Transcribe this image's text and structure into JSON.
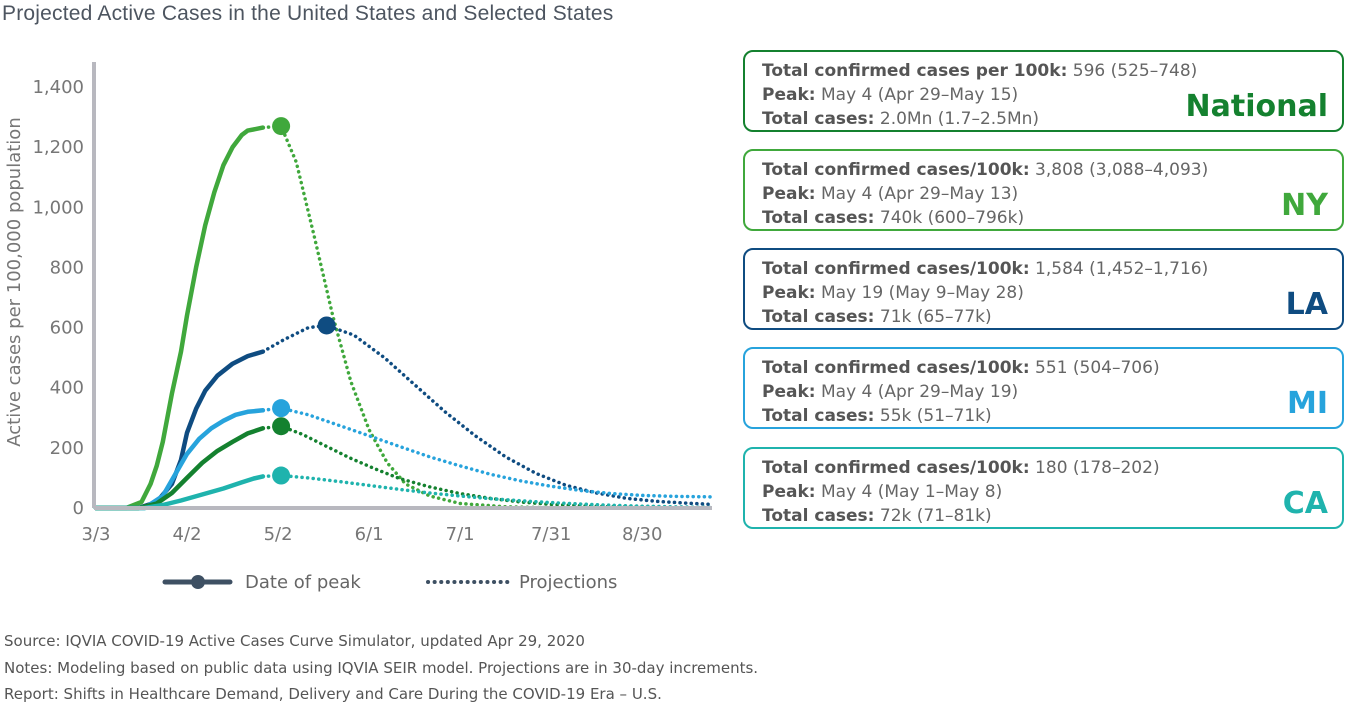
{
  "title": "Projected Active Cases in the United States and Selected States",
  "chart_data": {
    "type": "line",
    "ylabel": "Active cases per 100,000 population",
    "xlabel": "",
    "x_ticks": [
      "3/3",
      "4/2",
      "5/2",
      "6/1",
      "7/1",
      "7/31",
      "8/30"
    ],
    "x_tick_days": [
      0,
      30,
      60,
      90,
      120,
      150,
      180
    ],
    "x_range_days": [
      0,
      203
    ],
    "y_ticks": [
      "0",
      "200",
      "400",
      "600",
      "800",
      "1,000",
      "1,200",
      "1,400"
    ],
    "ylim": [
      0,
      1400
    ],
    "legend": {
      "peak_label": "Date of peak",
      "projection_label": "Projections"
    },
    "series": [
      {
        "name": "NY",
        "color": "#40a83c",
        "actual": [
          [
            0,
            0
          ],
          [
            10,
            0
          ],
          [
            15,
            20
          ],
          [
            18,
            80
          ],
          [
            20,
            140
          ],
          [
            22,
            220
          ],
          [
            25,
            380
          ],
          [
            28,
            520
          ],
          [
            30,
            640
          ],
          [
            33,
            800
          ],
          [
            36,
            940
          ],
          [
            39,
            1050
          ],
          [
            42,
            1140
          ],
          [
            45,
            1200
          ],
          [
            48,
            1240
          ],
          [
            50,
            1255
          ],
          [
            55,
            1265
          ]
        ],
        "peak": [
          61,
          1270
        ],
        "projection": [
          [
            55,
            1265
          ],
          [
            61,
            1270
          ],
          [
            66,
            1150
          ],
          [
            72,
            900
          ],
          [
            78,
            640
          ],
          [
            84,
            420
          ],
          [
            90,
            260
          ],
          [
            96,
            150
          ],
          [
            102,
            80
          ],
          [
            110,
            40
          ],
          [
            120,
            15
          ],
          [
            135,
            4
          ],
          [
            150,
            1
          ],
          [
            170,
            0
          ],
          [
            203,
            0
          ]
        ]
      },
      {
        "name": "LA",
        "color": "#0f4c81",
        "actual": [
          [
            0,
            0
          ],
          [
            14,
            0
          ],
          [
            20,
            20
          ],
          [
            25,
            80
          ],
          [
            28,
            160
          ],
          [
            30,
            250
          ],
          [
            33,
            330
          ],
          [
            36,
            390
          ],
          [
            40,
            440
          ],
          [
            45,
            480
          ],
          [
            50,
            505
          ],
          [
            55,
            520
          ]
        ],
        "peak": [
          76,
          607
        ],
        "projection": [
          [
            55,
            520
          ],
          [
            62,
            560
          ],
          [
            70,
            600
          ],
          [
            76,
            607
          ],
          [
            85,
            575
          ],
          [
            95,
            500
          ],
          [
            105,
            410
          ],
          [
            115,
            320
          ],
          [
            125,
            240
          ],
          [
            135,
            170
          ],
          [
            145,
            115
          ],
          [
            155,
            75
          ],
          [
            165,
            50
          ],
          [
            175,
            32
          ],
          [
            185,
            22
          ],
          [
            195,
            16
          ],
          [
            203,
            12
          ]
        ]
      },
      {
        "name": "MI",
        "color": "#27a3dc",
        "actual": [
          [
            0,
            0
          ],
          [
            16,
            0
          ],
          [
            22,
            40
          ],
          [
            26,
            110
          ],
          [
            30,
            180
          ],
          [
            34,
            230
          ],
          [
            38,
            265
          ],
          [
            42,
            290
          ],
          [
            46,
            310
          ],
          [
            50,
            320
          ],
          [
            55,
            325
          ]
        ],
        "peak": [
          61,
          332
        ],
        "projection": [
          [
            55,
            325
          ],
          [
            61,
            332
          ],
          [
            70,
            310
          ],
          [
            80,
            275
          ],
          [
            90,
            240
          ],
          [
            100,
            205
          ],
          [
            110,
            170
          ],
          [
            120,
            140
          ],
          [
            130,
            112
          ],
          [
            140,
            90
          ],
          [
            150,
            72
          ],
          [
            160,
            58
          ],
          [
            170,
            48
          ],
          [
            180,
            42
          ],
          [
            190,
            39
          ],
          [
            203,
            37
          ]
        ]
      },
      {
        "name": "National",
        "color": "#14812f",
        "actual": [
          [
            0,
            0
          ],
          [
            14,
            0
          ],
          [
            20,
            15
          ],
          [
            25,
            50
          ],
          [
            30,
            100
          ],
          [
            35,
            150
          ],
          [
            40,
            190
          ],
          [
            45,
            220
          ],
          [
            50,
            248
          ],
          [
            55,
            265
          ]
        ],
        "peak": [
          61,
          272
        ],
        "projection": [
          [
            55,
            265
          ],
          [
            61,
            272
          ],
          [
            68,
            245
          ],
          [
            76,
            205
          ],
          [
            84,
            165
          ],
          [
            92,
            130
          ],
          [
            100,
            98
          ],
          [
            110,
            70
          ],
          [
            120,
            48
          ],
          [
            130,
            32
          ],
          [
            140,
            20
          ],
          [
            150,
            12
          ],
          [
            160,
            7
          ],
          [
            175,
            3
          ],
          [
            190,
            1
          ],
          [
            203,
            0
          ]
        ]
      },
      {
        "name": "CA",
        "color": "#1fb3ad",
        "actual": [
          [
            0,
            0
          ],
          [
            16,
            0
          ],
          [
            22,
            10
          ],
          [
            28,
            25
          ],
          [
            35,
            45
          ],
          [
            42,
            65
          ],
          [
            48,
            85
          ],
          [
            52,
            98
          ],
          [
            55,
            105
          ]
        ],
        "peak": [
          61,
          108
        ],
        "projection": [
          [
            55,
            105
          ],
          [
            61,
            108
          ],
          [
            70,
            100
          ],
          [
            80,
            88
          ],
          [
            90,
            75
          ],
          [
            100,
            62
          ],
          [
            110,
            50
          ],
          [
            120,
            40
          ],
          [
            130,
            31
          ],
          [
            140,
            24
          ],
          [
            150,
            18
          ],
          [
            160,
            13
          ],
          [
            170,
            9
          ],
          [
            180,
            6
          ],
          [
            190,
            4
          ],
          [
            203,
            2
          ]
        ]
      }
    ]
  },
  "cards": [
    {
      "line1_label": "Total confirmed cases per 100k:",
      "line1_value": " 596 (525–748)",
      "line2_label": "Peak:",
      "line2_value": " May 4 (Apr 29–May 15)",
      "line3_label": "Total cases:",
      "line3_value": " 2.0Mn (1.7–2.5Mn)",
      "region": "National",
      "color": "#14812f"
    },
    {
      "line1_label": "Total confirmed cases/100k:",
      "line1_value": " 3,808 (3,088–4,093)",
      "line2_label": "Peak:",
      "line2_value": " May 4 (Apr 29–May 13)",
      "line3_label": "Total cases:",
      "line3_value": " 740k (600–796k)",
      "region": "NY",
      "color": "#40a83c"
    },
    {
      "line1_label": "Total confirmed cases/100k:",
      "line1_value": " 1,584 (1,452–1,716)",
      "line2_label": "Peak:",
      "line2_value": " May 19 (May 9–May 28)",
      "line3_label": "Total cases:",
      "line3_value": " 71k (65–77k)",
      "region": "LA",
      "color": "#0f4c81"
    },
    {
      "line1_label": "Total confirmed cases/100k:",
      "line1_value": " 551 (504–706)",
      "line2_label": "Peak:",
      "line2_value": " May 4 (Apr 29–May 19)",
      "line3_label": "Total cases:",
      "line3_value": " 55k (51–71k)",
      "region": "MI",
      "color": "#27a3dc"
    },
    {
      "line1_label": "Total confirmed cases/100k:",
      "line1_value": " 180 (178–202)",
      "line2_label": "Peak:",
      "line2_value": " May 4 (May 1–May 8)",
      "line3_label": "Total cases:",
      "line3_value": " 72k (71–81k)",
      "region": "CA",
      "color": "#1fb3ad"
    }
  ],
  "footer": {
    "source": "Source: IQVIA COVID-19 Active Cases Curve Simulator, updated Apr 29, 2020",
    "notes": "Notes: Modeling based on public data using IQVIA SEIR model. Projections are in 30-day increments.",
    "report": "Report: Shifts in Healthcare Demand, Delivery and Care During the COVID-19 Era – U.S."
  },
  "colors": {
    "axis": "#b8b8bf",
    "legend_marker": "#3e5063",
    "text": "#555555"
  }
}
